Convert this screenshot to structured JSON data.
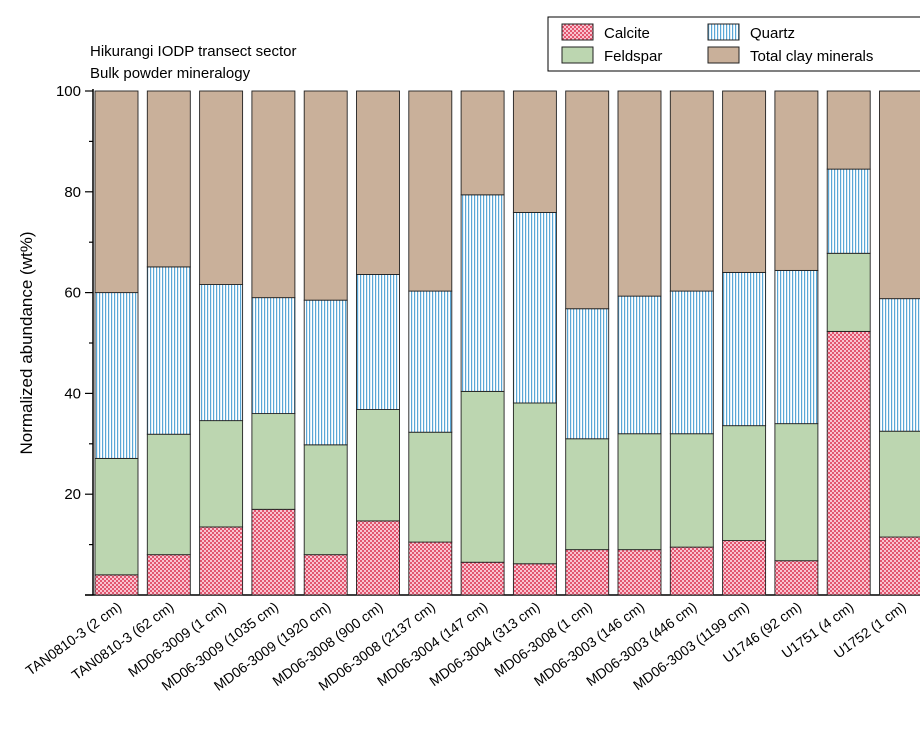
{
  "chart_data": {
    "type": "bar",
    "stacked": true,
    "normalized": true,
    "title": "Hikurangi IODP transect sector",
    "subtitle": "Bulk powder mineralogy",
    "ylabel": "Normalized abundance (wt%)",
    "xlabel": "",
    "ylim": [
      0,
      100
    ],
    "yticks": [
      "20",
      "40",
      "60",
      "80",
      "100"
    ],
    "grid": false,
    "legend_position": "top-right",
    "categories": [
      "TAN0810-3 (2 cm)",
      "TAN0810-3 (62 cm)",
      "MD06-3009 (1 cm)",
      "MD06-3009 (1035 cm)",
      "MD06-3009 (1920 cm)",
      "MD06-3008 (900 cm)",
      "MD06-3008 (2137 cm)",
      "MD06-3004 (147 cm)",
      "MD06-3004 (313 cm)",
      "MD06-3008 (1 cm)",
      "MD06-3003 (146 cm)",
      "MD06-3003 (446 cm)",
      "MD06-3003 (1199 cm)",
      "U1746 (92 cm)",
      "U1751 (4 cm)",
      "U1752 (1 cm)"
    ],
    "series": [
      {
        "name": "Calcite",
        "color": "#f3a6b7",
        "pattern": "checker",
        "values": [
          4,
          8,
          13.5,
          17,
          8,
          14.7,
          10.5,
          6.5,
          6.2,
          9,
          9,
          9.5,
          10.8,
          6.8,
          52.3,
          11.5
        ]
      },
      {
        "name": "Feldspar",
        "color": "#bcd6b0",
        "pattern": "solid",
        "values": [
          23.1,
          23.9,
          21.1,
          19,
          21.8,
          22.1,
          21.8,
          33.9,
          31.9,
          22,
          23,
          22.5,
          22.8,
          27.2,
          15.5,
          21
        ]
      },
      {
        "name": "Quartz",
        "color": "#a9d8ef",
        "pattern": "vertical-lines",
        "values": [
          32.9,
          33.2,
          27,
          23,
          28.7,
          26.8,
          28,
          39,
          37.8,
          25.8,
          27.3,
          28.3,
          30.4,
          30.4,
          16.7,
          26.3
        ]
      },
      {
        "name": "Total clay minerals",
        "color": "#c9b09a",
        "pattern": "solid",
        "values": [
          40,
          34.9,
          38.4,
          41,
          41.5,
          36.4,
          39.7,
          20.6,
          24.1,
          43.2,
          40.7,
          39.7,
          36,
          35.6,
          15.5,
          41.2
        ]
      }
    ]
  }
}
